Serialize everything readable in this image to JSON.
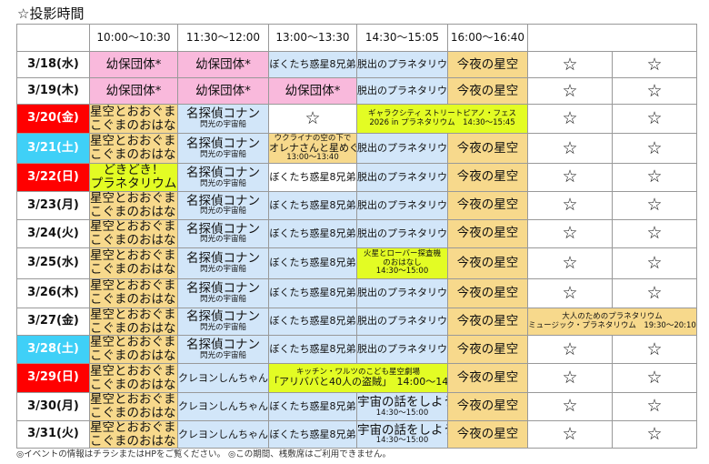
{
  "title": "☆投影時間",
  "header": [
    "",
    "10:00〜10:30",
    "11:30〜12:00",
    "13:00〜13:30",
    "14:30〜15:05",
    "16:00〜16:40",
    ""
  ],
  "colors": {
    "pink": "#f9b9dc",
    "tan": "#f7d98c",
    "blue": "#d2e6f9",
    "yellow": "#e3fc24",
    "red": "#ff0000",
    "cyan": "#3fd0f7"
  },
  "rows": [
    {
      "date": "3/18(水)",
      "style": "white",
      "cells": [
        {
          "t": "幼保団体*",
          "c": "pink",
          "s": "big"
        },
        {
          "t": "幼保団体*",
          "c": "pink",
          "s": "big"
        },
        {
          "t": "ぼくたち惑星8兄弟",
          "c": "blue",
          "s": "mid"
        },
        {
          "t": "脱出のプラネタリウム",
          "c": "blue",
          "s": "mid"
        },
        {
          "t": "今夜の星空",
          "c": "tan",
          "s": "big"
        },
        {
          "t": "☆",
          "c": "white",
          "s": "star"
        },
        {
          "t": "☆",
          "c": "white",
          "s": "star"
        }
      ]
    },
    {
      "date": "3/19(木)",
      "style": "white",
      "cells": [
        {
          "t": "幼保団体*",
          "c": "pink",
          "s": "big"
        },
        {
          "t": "幼保団体*",
          "c": "pink",
          "s": "big"
        },
        {
          "t": "幼保団体*",
          "c": "pink",
          "s": "big"
        },
        {
          "t": "脱出のプラネタリウム",
          "c": "blue",
          "s": "mid"
        },
        {
          "t": "今夜の星空",
          "c": "tan",
          "s": "big"
        },
        {
          "t": "☆",
          "c": "white",
          "s": "star"
        },
        {
          "t": "☆",
          "c": "white",
          "s": "star"
        }
      ]
    },
    {
      "date": "3/20(金)",
      "style": "red",
      "cells": [
        {
          "t": "星空とおおぐま・",
          "t2": "こぐまのおはなし",
          "c": "tan",
          "s": "big"
        },
        {
          "t": "名探偵コナン",
          "sub": "閃光の宇宙船",
          "c": "blue",
          "s": "big"
        },
        {
          "t": "☆",
          "c": "white",
          "s": "star"
        },
        {
          "t": "ギャラクシティ ストリートピアノ・フェス",
          "t2": "2026 in プラネタリウム　14:30〜15:45",
          "c": "yellow",
          "s": "small",
          "span": 2
        },
        {
          "t": "☆",
          "c": "white",
          "s": "star"
        },
        {
          "t": "☆",
          "c": "white",
          "s": "star"
        }
      ]
    },
    {
      "date": "3/21(土)",
      "style": "cyan",
      "cells": [
        {
          "t": "星空とおおぐま・",
          "t2": "こぐまのおはなし",
          "c": "tan",
          "s": "big"
        },
        {
          "t": "名探偵コナン",
          "sub": "閃光の宇宙船",
          "c": "blue",
          "s": "big"
        },
        {
          "pre": "ウクライナの空の下で",
          "t": "オレナさんと星めぐり",
          "sub": "13:00〜13:40",
          "c": "tan",
          "s": "mid"
        },
        {
          "t": "脱出のプラネタリウム",
          "c": "blue",
          "s": "mid"
        },
        {
          "t": "今夜の星空",
          "c": "tan",
          "s": "big"
        },
        {
          "t": "☆",
          "c": "white",
          "s": "star"
        },
        {
          "t": "☆",
          "c": "white",
          "s": "star"
        }
      ]
    },
    {
      "date": "3/22(日)",
      "style": "red",
      "cells": [
        {
          "t": "どきどき！",
          "t2": "プラネタリウム",
          "c": "yellow",
          "s": "big"
        },
        {
          "t": "名探偵コナン",
          "sub": "閃光の宇宙船",
          "c": "blue",
          "s": "big"
        },
        {
          "t": "ぼくたち惑星8兄弟",
          "c": "white",
          "s": "mid"
        },
        {
          "t": "脱出のプラネタリウム",
          "c": "blue",
          "s": "mid"
        },
        {
          "t": "今夜の星空",
          "c": "tan",
          "s": "big"
        },
        {
          "t": "☆",
          "c": "white",
          "s": "star"
        },
        {
          "t": "☆",
          "c": "white",
          "s": "star"
        }
      ]
    },
    {
      "date": "3/23(月)",
      "style": "white",
      "cells": [
        {
          "t": "星空とおおぐま・",
          "t2": "こぐまのおはなし",
          "c": "tan",
          "s": "big"
        },
        {
          "t": "名探偵コナン",
          "sub": "閃光の宇宙船",
          "c": "blue",
          "s": "big"
        },
        {
          "t": "ぼくたち惑星8兄弟",
          "c": "blue",
          "s": "mid"
        },
        {
          "t": "脱出のプラネタリウム",
          "c": "blue",
          "s": "mid"
        },
        {
          "t": "今夜の星空",
          "c": "tan",
          "s": "big"
        },
        {
          "t": "☆",
          "c": "white",
          "s": "star"
        },
        {
          "t": "☆",
          "c": "white",
          "s": "star"
        }
      ]
    },
    {
      "date": "3/24(火)",
      "style": "white",
      "cells": [
        {
          "t": "星空とおおぐま・",
          "t2": "こぐまのおはなし",
          "c": "tan",
          "s": "big"
        },
        {
          "t": "名探偵コナン",
          "sub": "閃光の宇宙船",
          "c": "blue",
          "s": "big"
        },
        {
          "t": "ぼくたち惑星8兄弟",
          "c": "blue",
          "s": "mid"
        },
        {
          "t": "脱出のプラネタリウム",
          "c": "blue",
          "s": "mid"
        },
        {
          "t": "今夜の星空",
          "c": "tan",
          "s": "big"
        },
        {
          "t": "☆",
          "c": "white",
          "s": "star"
        },
        {
          "t": "☆",
          "c": "white",
          "s": "star"
        }
      ]
    },
    {
      "date": "3/25(水)",
      "style": "white",
      "cells": [
        {
          "t": "星空とおおぐま・",
          "t2": "こぐまのおはなし",
          "c": "tan",
          "s": "big"
        },
        {
          "t": "名探偵コナン",
          "sub": "閃光の宇宙船",
          "c": "blue",
          "s": "big"
        },
        {
          "t": "ぼくたち惑星8兄弟",
          "c": "blue",
          "s": "mid"
        },
        {
          "t": "火星とローバー探査機",
          "t2": "のおはなし",
          "sub": "14:30〜15:00",
          "c": "yellow",
          "s": "small"
        },
        {
          "t": "今夜の星空",
          "c": "tan",
          "s": "big"
        },
        {
          "t": "☆",
          "c": "white",
          "s": "star"
        },
        {
          "t": "☆",
          "c": "white",
          "s": "star"
        }
      ]
    },
    {
      "date": "3/26(木)",
      "style": "white",
      "cells": [
        {
          "t": "星空とおおぐま・",
          "t2": "こぐまのおはなし",
          "c": "tan",
          "s": "big"
        },
        {
          "t": "名探偵コナン",
          "sub": "閃光の宇宙船",
          "c": "blue",
          "s": "big"
        },
        {
          "t": "ぼくたち惑星8兄弟",
          "c": "blue",
          "s": "mid"
        },
        {
          "t": "脱出のプラネタリウム",
          "c": "blue",
          "s": "mid"
        },
        {
          "t": "今夜の星空",
          "c": "tan",
          "s": "big"
        },
        {
          "t": "☆",
          "c": "white",
          "s": "star"
        },
        {
          "t": "☆",
          "c": "white",
          "s": "star"
        }
      ]
    },
    {
      "date": "3/27(金)",
      "style": "white",
      "cells": [
        {
          "t": "星空とおおぐま・",
          "t2": "こぐまのおはなし",
          "c": "tan",
          "s": "big"
        },
        {
          "t": "名探偵コナン",
          "sub": "閃光の宇宙船",
          "c": "blue",
          "s": "big"
        },
        {
          "t": "ぼくたち惑星8兄弟",
          "c": "blue",
          "s": "mid"
        },
        {
          "t": "脱出のプラネタリウム",
          "c": "blue",
          "s": "mid"
        },
        {
          "t": "今夜の星空",
          "c": "tan",
          "s": "big"
        },
        {
          "pre": "大人のためのプラネタリウム",
          "t": "ミュージック・プラネタリウム　19:30〜20:10",
          "c": "tan",
          "s": "small",
          "span": 2
        }
      ]
    },
    {
      "date": "3/28(土)",
      "style": "cyan",
      "cells": [
        {
          "t": "星空とおおぐま・",
          "t2": "こぐまのおはなし",
          "c": "tan",
          "s": "big"
        },
        {
          "t": "名探偵コナン",
          "sub": "閃光の宇宙船",
          "c": "blue",
          "s": "big"
        },
        {
          "t": "ぼくたち惑星8兄弟",
          "c": "blue",
          "s": "mid"
        },
        {
          "t": "脱出のプラネタリウム",
          "c": "blue",
          "s": "mid"
        },
        {
          "t": "今夜の星空",
          "c": "tan",
          "s": "big"
        },
        {
          "t": "☆",
          "c": "white",
          "s": "star"
        },
        {
          "t": "☆",
          "c": "white",
          "s": "star"
        }
      ]
    },
    {
      "date": "3/29(日)",
      "style": "red",
      "cells": [
        {
          "t": "星空とおおぐま・",
          "t2": "こぐまのおはなし",
          "c": "tan",
          "s": "big"
        },
        {
          "t": "クレヨンしんちゃん",
          "c": "blue",
          "s": "mid"
        },
        {
          "pre": "キッチン・ワルツのこども星空劇場",
          "t": "「アリババと40人の盗賊」　14:00〜14:50",
          "c": "yellow",
          "s": "mid",
          "span": 2
        },
        {
          "t": "今夜の星空",
          "c": "tan",
          "s": "big"
        },
        {
          "t": "☆",
          "c": "white",
          "s": "star"
        },
        {
          "t": "☆",
          "c": "white",
          "s": "star"
        }
      ]
    },
    {
      "date": "3/30(月)",
      "style": "white",
      "cells": [
        {
          "t": "星空とおおぐま・",
          "t2": "こぐまのおはなし",
          "c": "tan",
          "s": "big"
        },
        {
          "t": "クレヨンしんちゃん",
          "c": "blue",
          "s": "mid"
        },
        {
          "t": "ぼくたち惑星8兄弟",
          "c": "blue",
          "s": "mid"
        },
        {
          "t": "宇宙の話をしよう",
          "sub": "14:30〜15:00",
          "c": "blue",
          "s": "big"
        },
        {
          "t": "今夜の星空",
          "c": "tan",
          "s": "big"
        },
        {
          "t": "☆",
          "c": "white",
          "s": "star"
        },
        {
          "t": "☆",
          "c": "white",
          "s": "star"
        }
      ]
    },
    {
      "date": "3/31(火)",
      "style": "white",
      "cells": [
        {
          "t": "星空とおおぐま・",
          "t2": "こぐまのおはなし",
          "c": "tan",
          "s": "big"
        },
        {
          "t": "クレヨンしんちゃん",
          "c": "blue",
          "s": "mid"
        },
        {
          "t": "ぼくたち惑星8兄弟",
          "c": "blue",
          "s": "mid"
        },
        {
          "t": "宇宙の話をしよう",
          "sub": "14:30〜15:00",
          "c": "blue",
          "s": "big"
        },
        {
          "t": "今夜の星空",
          "c": "tan",
          "s": "big"
        },
        {
          "t": "☆",
          "c": "white",
          "s": "star"
        },
        {
          "t": "☆",
          "c": "white",
          "s": "star"
        }
      ]
    }
  ],
  "footer": "◎イベントの情報はチラシまたはHPをご覧ください。 ◎この期間、桟敷席はご利用できません。"
}
